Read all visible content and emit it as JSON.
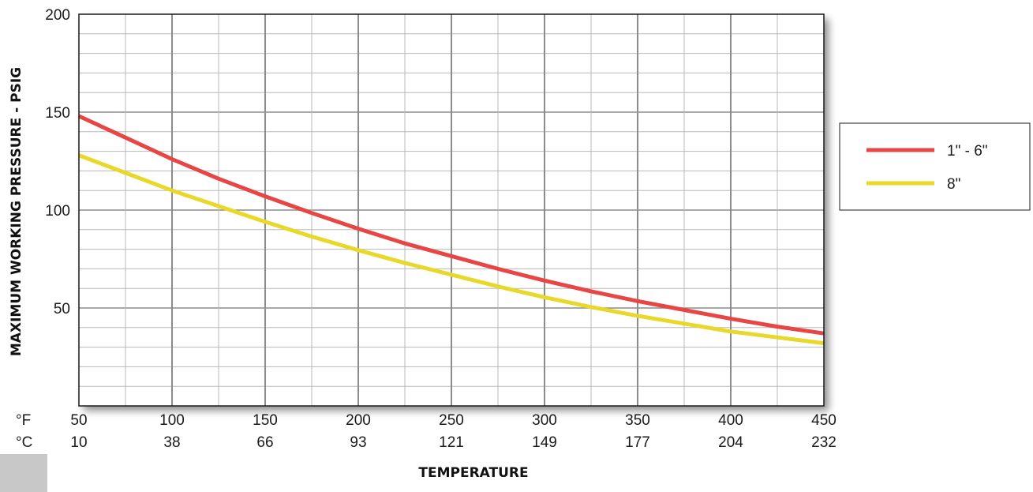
{
  "chart_data": {
    "type": "line",
    "ylabel": "MAXIMUM WORKING PRESSURE - PSIG",
    "xlabel": "TEMPERATURE",
    "x_unit_label": "°F",
    "x2_unit_label": "°C",
    "x_ticks": [
      "50",
      "100",
      "150",
      "200",
      "250",
      "300",
      "350",
      "400",
      "450"
    ],
    "x2_ticks": [
      "10",
      "38",
      "66",
      "93",
      "121",
      "149",
      "177",
      "204",
      "232"
    ],
    "y_ticks": [
      "50",
      "100",
      "150",
      "200"
    ],
    "xlim": [
      50,
      450
    ],
    "ylim": [
      0,
      200
    ],
    "grid": true,
    "legend_position": "right",
    "series": [
      {
        "name": "1\" - 6\"",
        "color": "#e84545",
        "x": [
          50,
          75,
          100,
          125,
          150,
          175,
          200,
          225,
          250,
          275,
          300,
          325,
          350,
          375,
          400,
          425,
          450
        ],
        "y": [
          148,
          137,
          126,
          116,
          107,
          98.5,
          90.5,
          83,
          76.5,
          70,
          64,
          58.5,
          53.5,
          49,
          44.5,
          40.5,
          37
        ]
      },
      {
        "name": "8\"",
        "color": "#e8d82a",
        "x": [
          50,
          75,
          100,
          125,
          150,
          175,
          200,
          225,
          250,
          275,
          300,
          325,
          350,
          375,
          400,
          425,
          450
        ],
        "y": [
          128,
          119,
          110,
          102,
          94,
          86.5,
          79.5,
          73,
          67,
          61,
          55.5,
          50.5,
          46,
          42,
          38,
          35,
          32
        ]
      }
    ]
  }
}
